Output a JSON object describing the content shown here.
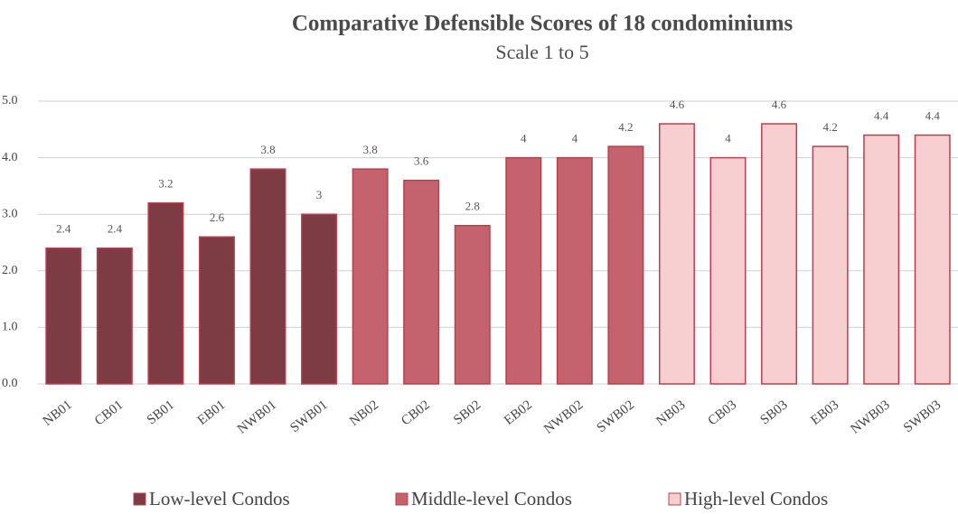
{
  "chart_data": {
    "type": "bar",
    "title": "Comparative Defensible Scores of 18 condominiums",
    "subtitle": "Scale 1 to 5",
    "categories": [
      "NB01",
      "CB01",
      "SB01",
      "EB01",
      "NWB01",
      "SWB01",
      "NB02",
      "CB02",
      "SB02",
      "EB02",
      "NWB02",
      "SWB02",
      "NB03",
      "CB03",
      "SB03",
      "EB03",
      "NWB03",
      "SWB03"
    ],
    "series": [
      {
        "name": "Low-level Condos",
        "color": "#7d3b44",
        "values": [
          2.4,
          2.4,
          3.2,
          2.6,
          3.8,
          3,
          null,
          null,
          null,
          null,
          null,
          null,
          null,
          null,
          null,
          null,
          null,
          null
        ]
      },
      {
        "name": "Middle-level Condos",
        "color": "#c4636d",
        "values": [
          null,
          null,
          null,
          null,
          null,
          null,
          3.8,
          3.6,
          2.8,
          4,
          4,
          4.2,
          null,
          null,
          null,
          null,
          null,
          null
        ]
      },
      {
        "name": "High-level Condos",
        "color": "#f8cfd0",
        "values": [
          null,
          null,
          null,
          null,
          null,
          null,
          null,
          null,
          null,
          null,
          null,
          null,
          4.6,
          4,
          4.6,
          4.2,
          4.4,
          4.4
        ]
      }
    ],
    "ylim": [
      0,
      5
    ],
    "yticks": [
      {
        "value": 0,
        "label": "0.0"
      },
      {
        "value": 1,
        "label": "1.0"
      },
      {
        "value": 2,
        "label": "2.0"
      },
      {
        "value": 3,
        "label": "3.0"
      },
      {
        "value": 4,
        "label": "4.0"
      },
      {
        "value": 5,
        "label": "5.0"
      }
    ],
    "grid": true,
    "legend": "bottom"
  }
}
